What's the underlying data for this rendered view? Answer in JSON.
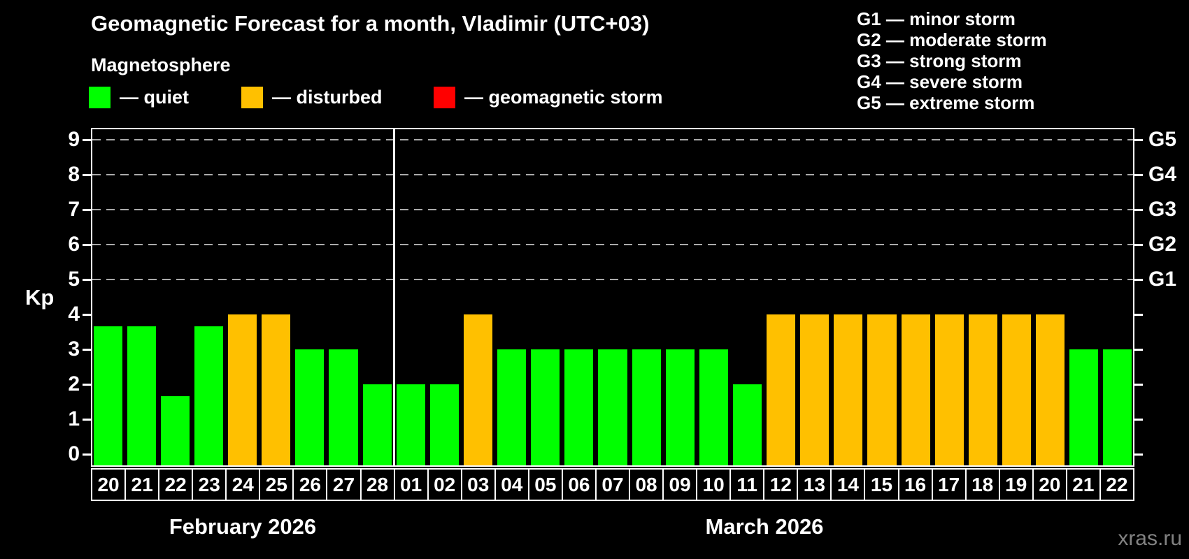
{
  "title": "Geomagnetic Forecast for a month, Vladimir (UTC+03)",
  "subtitle": "Magnetosphere",
  "watermark": "xras.ru",
  "legend": {
    "items": [
      {
        "name": "quiet",
        "label": "— quiet",
        "color": "#00ff00"
      },
      {
        "name": "disturbed",
        "label": "— disturbed",
        "color": "#ffc000"
      },
      {
        "name": "storm",
        "label": "— geomagnetic storm",
        "color": "#ff0000"
      }
    ]
  },
  "storm_scale": [
    "G1 — minor storm",
    "G2 — moderate storm",
    "G3 — strong storm",
    "G4 — severe storm",
    "G5 — extreme storm"
  ],
  "chart_data": {
    "type": "bar",
    "title": "Geomagnetic Forecast for a month, Vladimir (UTC+03)",
    "ylabel": "Kp",
    "ylim": [
      0,
      9
    ],
    "yticks": [
      0,
      1,
      2,
      3,
      4,
      5,
      6,
      7,
      8,
      9
    ],
    "gridlines_kp": [
      5,
      6,
      7,
      8,
      9
    ],
    "grid": "dashed horizontal at G-storm levels only",
    "legend_position": "top",
    "right_axis": [
      {
        "label": "G1",
        "kp": 5
      },
      {
        "label": "G2",
        "kp": 6
      },
      {
        "label": "G3",
        "kp": 7
      },
      {
        "label": "G4",
        "kp": 8
      },
      {
        "label": "G5",
        "kp": 9
      }
    ],
    "colors": {
      "quiet": "#00ff00",
      "disturbed": "#ffc000",
      "storm": "#ff0000"
    },
    "months": [
      {
        "label": "February 2026",
        "start_index": 0,
        "count": 9
      },
      {
        "label": "March 2026",
        "start_index": 9,
        "count": 22
      }
    ],
    "bars": [
      {
        "month": "February 2026",
        "day": "20",
        "kp": 3.67,
        "status": "quiet"
      },
      {
        "month": "February 2026",
        "day": "21",
        "kp": 3.67,
        "status": "quiet"
      },
      {
        "month": "February 2026",
        "day": "22",
        "kp": 1.67,
        "status": "quiet"
      },
      {
        "month": "February 2026",
        "day": "23",
        "kp": 3.67,
        "status": "quiet"
      },
      {
        "month": "February 2026",
        "day": "24",
        "kp": 4,
        "status": "disturbed"
      },
      {
        "month": "February 2026",
        "day": "25",
        "kp": 4,
        "status": "disturbed"
      },
      {
        "month": "February 2026",
        "day": "26",
        "kp": 3,
        "status": "quiet"
      },
      {
        "month": "February 2026",
        "day": "27",
        "kp": 3,
        "status": "quiet"
      },
      {
        "month": "February 2026",
        "day": "28",
        "kp": 2,
        "status": "quiet"
      },
      {
        "month": "March 2026",
        "day": "01",
        "kp": 2,
        "status": "quiet"
      },
      {
        "month": "March 2026",
        "day": "02",
        "kp": 2,
        "status": "quiet"
      },
      {
        "month": "March 2026",
        "day": "03",
        "kp": 4,
        "status": "disturbed"
      },
      {
        "month": "March 2026",
        "day": "04",
        "kp": 3,
        "status": "quiet"
      },
      {
        "month": "March 2026",
        "day": "05",
        "kp": 3,
        "status": "quiet"
      },
      {
        "month": "March 2026",
        "day": "06",
        "kp": 3,
        "status": "quiet"
      },
      {
        "month": "March 2026",
        "day": "07",
        "kp": 3,
        "status": "quiet"
      },
      {
        "month": "March 2026",
        "day": "08",
        "kp": 3,
        "status": "quiet"
      },
      {
        "month": "March 2026",
        "day": "09",
        "kp": 3,
        "status": "quiet"
      },
      {
        "month": "March 2026",
        "day": "10",
        "kp": 3,
        "status": "quiet"
      },
      {
        "month": "March 2026",
        "day": "11",
        "kp": 2,
        "status": "quiet"
      },
      {
        "month": "March 2026",
        "day": "12",
        "kp": 4,
        "status": "disturbed"
      },
      {
        "month": "March 2026",
        "day": "13",
        "kp": 4,
        "status": "disturbed"
      },
      {
        "month": "March 2026",
        "day": "14",
        "kp": 4,
        "status": "disturbed"
      },
      {
        "month": "March 2026",
        "day": "15",
        "kp": 4,
        "status": "disturbed"
      },
      {
        "month": "March 2026",
        "day": "16",
        "kp": 4,
        "status": "disturbed"
      },
      {
        "month": "March 2026",
        "day": "17",
        "kp": 4,
        "status": "disturbed"
      },
      {
        "month": "March 2026",
        "day": "18",
        "kp": 4,
        "status": "disturbed"
      },
      {
        "month": "March 2026",
        "day": "19",
        "kp": 4,
        "status": "disturbed"
      },
      {
        "month": "March 2026",
        "day": "20",
        "kp": 4,
        "status": "disturbed"
      },
      {
        "month": "March 2026",
        "day": "21",
        "kp": 3,
        "status": "quiet"
      },
      {
        "month": "March 2026",
        "day": "22",
        "kp": 3,
        "status": "quiet"
      }
    ]
  }
}
